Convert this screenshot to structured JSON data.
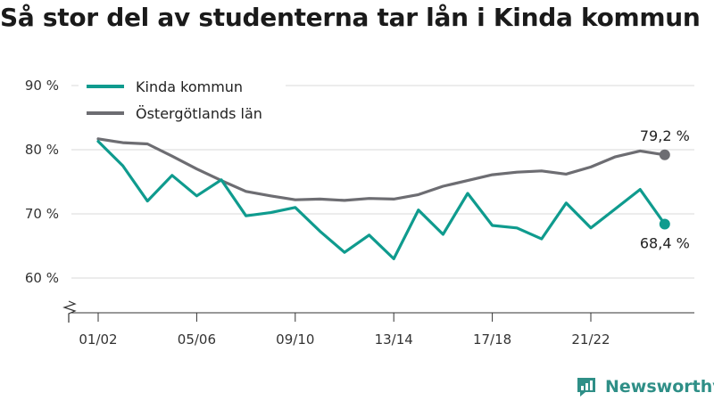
{
  "title": "Så stor del av studenterna tar lån i Kinda kommun",
  "brand": {
    "name": "Newsworthy",
    "icon": "newsworthy-logo-icon"
  },
  "colors": {
    "kinda": "#0f9b8e",
    "ostergotland": "#6d6d72",
    "grid": "#d9d9d9",
    "axis": "#333333"
  },
  "chart_data": {
    "type": "line",
    "title": "Så stor del av studenterna tar lån i Kinda kommun",
    "xlabel": "",
    "ylabel": "",
    "x": [
      "01/02",
      "02/03",
      "03/04",
      "04/05",
      "05/06",
      "06/07",
      "07/08",
      "08/09",
      "09/10",
      "10/11",
      "11/12",
      "12/13",
      "13/14",
      "14/15",
      "15/16",
      "16/17",
      "17/18",
      "18/19",
      "19/20",
      "20/21",
      "21/22",
      "22/23",
      "23/24",
      "24/25"
    ],
    "x_tick_labels": [
      "01/02",
      "05/06",
      "09/10",
      "13/14",
      "17/18",
      "21/22"
    ],
    "y_ticks": [
      "60 %",
      "70 %",
      "80 %",
      "90 %"
    ],
    "ylim": [
      58,
      92
    ],
    "axis_break": true,
    "grid": true,
    "legend_position": "top-left",
    "series": [
      {
        "name": "Kinda kommun",
        "color": "#0f9b8e",
        "values": [
          81.3,
          77.5,
          72.0,
          76.0,
          72.8,
          75.3,
          69.7,
          70.2,
          71.0,
          67.3,
          64.0,
          66.7,
          63.0,
          70.6,
          66.8,
          73.2,
          68.2,
          67.8,
          66.1,
          71.7,
          67.8,
          70.8,
          73.8,
          68.4
        ],
        "end_label": "68,4 %"
      },
      {
        "name": "Östergötlands län",
        "color": "#6d6d72",
        "values": [
          81.7,
          81.1,
          80.9,
          79.0,
          77.0,
          75.2,
          73.5,
          72.8,
          72.2,
          72.3,
          72.1,
          72.4,
          72.3,
          73.0,
          74.3,
          75.2,
          76.1,
          76.5,
          76.7,
          76.2,
          77.3,
          78.9,
          79.8,
          79.2
        ],
        "end_label": "79,2 %"
      }
    ]
  }
}
